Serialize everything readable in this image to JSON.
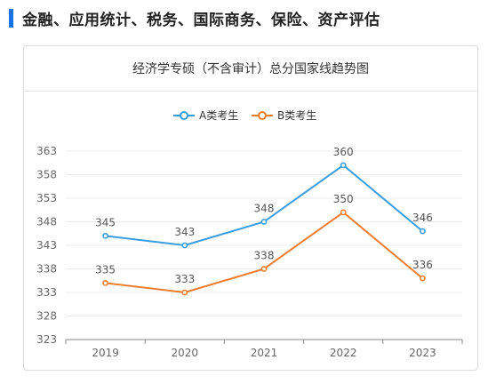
{
  "section": {
    "title": "金融、应用统计、税务、国际商务、保险、资产评估"
  },
  "colors": {
    "accent": "#1a73e8",
    "seriesA": "#3a9de0",
    "seriesB": "#ee7d30"
  },
  "chart_data": {
    "type": "line",
    "title": "经济学专硕（不含审计）总分国家线趋势图",
    "xlabel": "",
    "ylabel": "",
    "categories": [
      "2019",
      "2020",
      "2021",
      "2022",
      "2023"
    ],
    "yticks": [
      323,
      328,
      333,
      338,
      343,
      348,
      353,
      358,
      363
    ],
    "ylim": [
      323,
      363
    ],
    "grid": true,
    "legend_position": "top-center",
    "series": [
      {
        "name": "A类考生",
        "values": [
          345,
          343,
          348,
          360,
          346
        ]
      },
      {
        "name": "B类考生",
        "values": [
          335,
          333,
          338,
          350,
          336
        ]
      }
    ]
  }
}
